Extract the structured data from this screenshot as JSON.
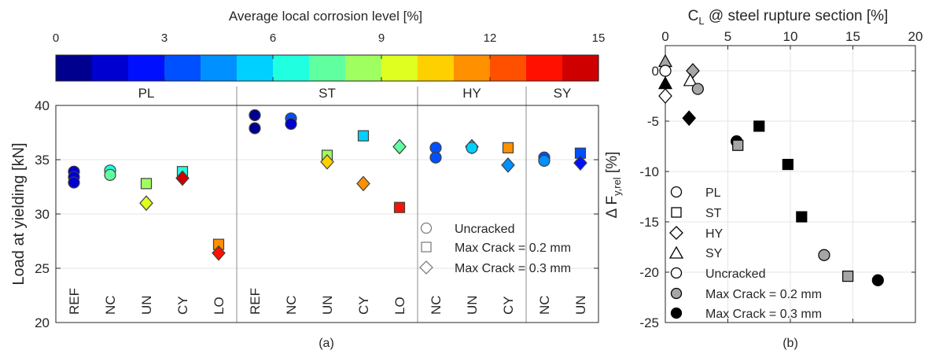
{
  "colorbar": {
    "title": "Average local corrosion level [%]",
    "ticks": [
      "0",
      "3",
      "6",
      "9",
      "12",
      "15"
    ],
    "range": [
      0,
      15
    ],
    "colors": [
      "#00008f",
      "#0000d0",
      "#0010ff",
      "#0050ff",
      "#0090ff",
      "#00d0ff",
      "#20ffdf",
      "#60ff9f",
      "#9fff60",
      "#dfff20",
      "#ffd000",
      "#ff9000",
      "#ff5000",
      "#ff1000",
      "#cf0000"
    ]
  },
  "panel_a": {
    "ylabel": "Load at yielding [kN]",
    "caption": "(a)",
    "group_labels": [
      "PL",
      "ST",
      "HY",
      "SY"
    ],
    "legend": [
      "Uncracked",
      "Max Crack = 0.2 mm",
      "Max Crack = 0.3 mm"
    ]
  },
  "panel_b": {
    "xlabel": "C",
    "xlabel_sub": "L",
    "xlabel_rest": " @ steel rupture section [%]",
    "ylabel_pre": "Δ F",
    "ylabel_sub": "y,rel",
    "ylabel_post": " [%]",
    "caption": "(b)",
    "legend": [
      "PL",
      "ST",
      "HY",
      "SY",
      "Uncracked",
      "Max Crack = 0.2 mm",
      "Max Crack = 0.3 mm"
    ]
  },
  "chart_data": [
    {
      "type": "scatter",
      "title": "",
      "ylabel": "Load at yielding [kN]",
      "ylim": [
        20,
        40
      ],
      "yticks": [
        "20",
        "25",
        "30",
        "35",
        "40"
      ],
      "categories": [
        "REF",
        "NC",
        "UN",
        "CY",
        "LO",
        "REF",
        "NC",
        "UN",
        "CY",
        "LO",
        "NC",
        "UN",
        "CY",
        "NC",
        "UN"
      ],
      "groups": [
        {
          "name": "PL",
          "from": 0,
          "to": 4
        },
        {
          "name": "ST",
          "from": 5,
          "to": 9
        },
        {
          "name": "HY",
          "from": 10,
          "to": 12
        },
        {
          "name": "SY",
          "from": 13,
          "to": 14
        }
      ],
      "points": [
        {
          "cat": 0,
          "y": 33.9,
          "marker": "circle",
          "corrosion": 1.0
        },
        {
          "cat": 0,
          "y": 33.4,
          "marker": "circle",
          "corrosion": 1.2
        },
        {
          "cat": 0,
          "y": 32.9,
          "marker": "circle",
          "corrosion": 1.4
        },
        {
          "cat": 1,
          "y": 34.0,
          "marker": "circle",
          "corrosion": 6.3
        },
        {
          "cat": 1,
          "y": 33.6,
          "marker": "circle",
          "corrosion": 7.5
        },
        {
          "cat": 2,
          "y": 32.8,
          "marker": "square",
          "corrosion": 8.3
        },
        {
          "cat": 2,
          "y": 31.0,
          "marker": "diamond",
          "corrosion": 9.3
        },
        {
          "cat": 3,
          "y": 33.9,
          "marker": "square",
          "corrosion": 6.0
        },
        {
          "cat": 3,
          "y": 33.3,
          "marker": "diamond",
          "corrosion": 14.7
        },
        {
          "cat": 4,
          "y": 27.2,
          "marker": "square",
          "corrosion": 11.5
        },
        {
          "cat": 4,
          "y": 26.4,
          "marker": "diamond",
          "corrosion": 13.7
        },
        {
          "cat": 5,
          "y": 39.1,
          "marker": "circle",
          "corrosion": 0.5
        },
        {
          "cat": 5,
          "y": 37.9,
          "marker": "circle",
          "corrosion": 0.7
        },
        {
          "cat": 6,
          "y": 38.8,
          "marker": "circle",
          "corrosion": 3.5
        },
        {
          "cat": 6,
          "y": 38.3,
          "marker": "circle",
          "corrosion": 1.5
        },
        {
          "cat": 7,
          "y": 35.4,
          "marker": "square",
          "corrosion": 8.2
        },
        {
          "cat": 7,
          "y": 34.8,
          "marker": "diamond",
          "corrosion": 10.0
        },
        {
          "cat": 8,
          "y": 37.2,
          "marker": "square",
          "corrosion": 5.5
        },
        {
          "cat": 8,
          "y": 32.8,
          "marker": "diamond",
          "corrosion": 11.5
        },
        {
          "cat": 9,
          "y": 36.2,
          "marker": "diamond",
          "corrosion": 7.8
        },
        {
          "cat": 9,
          "y": 30.6,
          "marker": "square",
          "corrosion": 13.0
        },
        {
          "cat": 10,
          "y": 36.1,
          "marker": "circle",
          "corrosion": 3.0
        },
        {
          "cat": 10,
          "y": 35.2,
          "marker": "circle",
          "corrosion": 3.8
        },
        {
          "cat": 11,
          "y": 36.2,
          "marker": "diamond",
          "corrosion": 5.5
        },
        {
          "cat": 11,
          "y": 36.1,
          "marker": "circle",
          "corrosion": 5.0
        },
        {
          "cat": 12,
          "y": 36.1,
          "marker": "square",
          "corrosion": 11.5
        },
        {
          "cat": 12,
          "y": 34.5,
          "marker": "diamond",
          "corrosion": 4.5
        },
        {
          "cat": 13,
          "y": 35.2,
          "marker": "circle",
          "corrosion": 3.2
        },
        {
          "cat": 13,
          "y": 34.9,
          "marker": "circle",
          "corrosion": 4.0
        },
        {
          "cat": 14,
          "y": 35.6,
          "marker": "square",
          "corrosion": 3.0
        },
        {
          "cat": 14,
          "y": 34.7,
          "marker": "diamond",
          "corrosion": 2.5
        }
      ]
    },
    {
      "type": "scatter",
      "title": "",
      "xlabel": "C_L @ steel rupture section [%]",
      "ylabel": "Δ F_y,rel [%]",
      "xlim": [
        0,
        20
      ],
      "ylim": [
        -25,
        2.5
      ],
      "xticks": [
        "0",
        "5",
        "10",
        "15",
        "20"
      ],
      "yticks": [
        "0",
        "-5",
        "-10",
        "-15",
        "-20",
        "-25"
      ],
      "points": [
        {
          "x": 0.0,
          "y": 0.9,
          "marker": "triangle",
          "fill": "#a6a6a6"
        },
        {
          "x": 0.0,
          "y": 0.0,
          "marker": "circle",
          "fill": "#ffffff"
        },
        {
          "x": 0.0,
          "y": -1.3,
          "marker": "triangle",
          "fill": "#000000"
        },
        {
          "x": 0.0,
          "y": -2.5,
          "marker": "diamond",
          "fill": "#ffffff"
        },
        {
          "x": 2.2,
          "y": 0.0,
          "marker": "diamond",
          "fill": "#a6a6a6"
        },
        {
          "x": 2.0,
          "y": -1.0,
          "marker": "triangle",
          "fill": "#ffffff"
        },
        {
          "x": 2.6,
          "y": -1.8,
          "marker": "circle",
          "fill": "#a6a6a6"
        },
        {
          "x": 1.9,
          "y": -4.7,
          "marker": "diamond",
          "fill": "#000000"
        },
        {
          "x": 5.7,
          "y": -7.0,
          "marker": "circle",
          "fill": "#000000"
        },
        {
          "x": 5.8,
          "y": -7.4,
          "marker": "square",
          "fill": "#a6a6a6"
        },
        {
          "x": 7.5,
          "y": -5.5,
          "marker": "square",
          "fill": "#000000"
        },
        {
          "x": 9.8,
          "y": -9.3,
          "marker": "square",
          "fill": "#000000"
        },
        {
          "x": 10.9,
          "y": -14.5,
          "marker": "square",
          "fill": "#000000"
        },
        {
          "x": 12.7,
          "y": -18.3,
          "marker": "circle",
          "fill": "#a6a6a6"
        },
        {
          "x": 14.6,
          "y": -20.4,
          "marker": "square",
          "fill": "#a6a6a6"
        },
        {
          "x": 17.0,
          "y": -20.8,
          "marker": "circle",
          "fill": "#000000"
        }
      ]
    }
  ]
}
